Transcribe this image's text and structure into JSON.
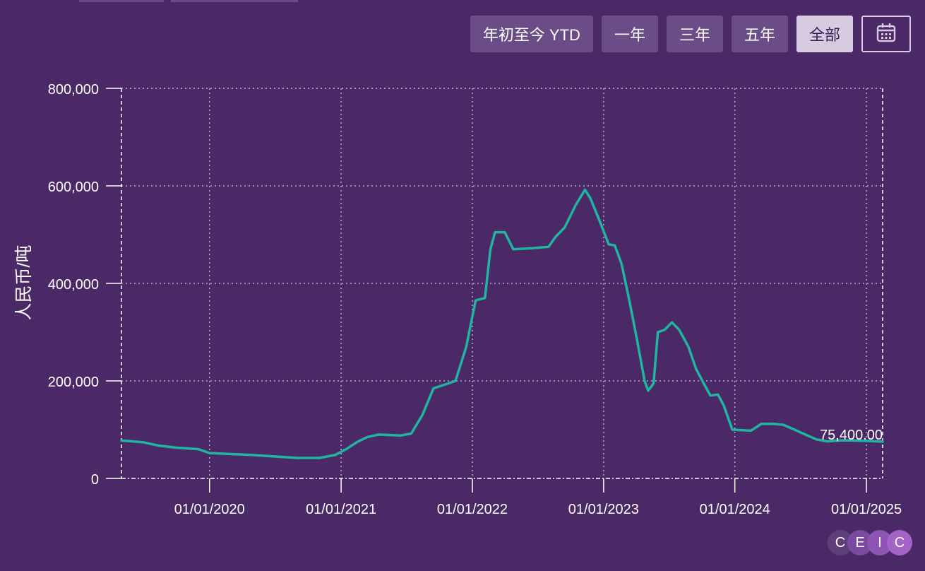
{
  "toolbar": {
    "buttons": [
      {
        "label": "年初至今 YTD",
        "active": false
      },
      {
        "label": "一年",
        "active": false
      },
      {
        "label": "三年",
        "active": false
      },
      {
        "label": "五年",
        "active": false
      },
      {
        "label": "全部",
        "active": true
      }
    ],
    "calendar_icon": "calendar-icon"
  },
  "logo": {
    "text": "CEIC",
    "letters": [
      "C",
      "E",
      "I",
      "C"
    ]
  },
  "colors": {
    "background": "#4a2966",
    "line": "#1fb5a0",
    "grid": "#bba9cc",
    "button": "#6a4c87",
    "button_active": "#d6cbe0"
  },
  "chart_data": {
    "type": "line",
    "ylabel": "人民币/吨",
    "xlabel": "",
    "title": "",
    "ylim": [
      0,
      800000
    ],
    "y_ticks": [
      0,
      200000,
      400000,
      600000,
      800000
    ],
    "y_tick_labels": [
      "0",
      "200,000",
      "400,000",
      "600,000",
      "800,000"
    ],
    "x_ticks": [
      "2020-01-01",
      "2021-01-01",
      "2022-01-01",
      "2023-01-01",
      "2024-01-01",
      "2025-01-01"
    ],
    "x_tick_labels": [
      "01/01/2020",
      "01/01/2021",
      "01/01/2022",
      "01/01/2023",
      "01/01/2024",
      "01/01/2025"
    ],
    "xlim": [
      "2019-05-01",
      "2025-02-15"
    ],
    "last_value_label": "75,400.00",
    "grid": true,
    "series": [
      {
        "color": "#1fb5a0",
        "points": [
          [
            "2019-05-01",
            78000
          ],
          [
            "2019-07-01",
            74000
          ],
          [
            "2019-08-15",
            67000
          ],
          [
            "2019-10-01",
            63000
          ],
          [
            "2019-12-01",
            60000
          ],
          [
            "2020-01-01",
            52000
          ],
          [
            "2020-03-01",
            50000
          ],
          [
            "2020-05-01",
            48000
          ],
          [
            "2020-07-01",
            45000
          ],
          [
            "2020-09-01",
            42000
          ],
          [
            "2020-11-01",
            42000
          ],
          [
            "2020-12-15",
            48000
          ],
          [
            "2021-01-15",
            60000
          ],
          [
            "2021-02-15",
            75000
          ],
          [
            "2021-03-15",
            85000
          ],
          [
            "2021-04-15",
            90000
          ],
          [
            "2021-06-15",
            88000
          ],
          [
            "2021-07-15",
            92000
          ],
          [
            "2021-08-15",
            130000
          ],
          [
            "2021-09-15",
            185000
          ],
          [
            "2021-10-15",
            192000
          ],
          [
            "2021-11-15",
            200000
          ],
          [
            "2021-12-15",
            270000
          ],
          [
            "2022-01-10",
            365000
          ],
          [
            "2022-02-05",
            370000
          ],
          [
            "2022-02-20",
            470000
          ],
          [
            "2022-03-05",
            505000
          ],
          [
            "2022-04-01",
            505000
          ],
          [
            "2022-04-25",
            470000
          ],
          [
            "2022-06-15",
            472000
          ],
          [
            "2022-08-01",
            475000
          ],
          [
            "2022-08-20",
            495000
          ],
          [
            "2022-09-15",
            515000
          ],
          [
            "2022-10-15",
            560000
          ],
          [
            "2022-11-10",
            592000
          ],
          [
            "2022-11-25",
            575000
          ],
          [
            "2022-12-20",
            530000
          ],
          [
            "2023-01-15",
            480000
          ],
          [
            "2023-02-01",
            478000
          ],
          [
            "2023-02-20",
            440000
          ],
          [
            "2023-03-15",
            360000
          ],
          [
            "2023-04-05",
            280000
          ],
          [
            "2023-04-25",
            200000
          ],
          [
            "2023-05-05",
            180000
          ],
          [
            "2023-05-20",
            195000
          ],
          [
            "2023-06-01",
            300000
          ],
          [
            "2023-06-20",
            305000
          ],
          [
            "2023-07-10",
            320000
          ],
          [
            "2023-07-30",
            305000
          ],
          [
            "2023-08-25",
            270000
          ],
          [
            "2023-09-15",
            225000
          ],
          [
            "2023-10-10",
            190000
          ],
          [
            "2023-10-25",
            170000
          ],
          [
            "2023-11-15",
            172000
          ],
          [
            "2023-12-01",
            150000
          ],
          [
            "2023-12-25",
            100000
          ],
          [
            "2024-02-15",
            98000
          ],
          [
            "2024-03-15",
            112000
          ],
          [
            "2024-04-15",
            112000
          ],
          [
            "2024-05-15",
            110000
          ],
          [
            "2024-06-15",
            100000
          ],
          [
            "2024-07-15",
            90000
          ],
          [
            "2024-08-15",
            80000
          ],
          [
            "2024-09-15",
            76000
          ],
          [
            "2024-10-15",
            78000
          ],
          [
            "2024-11-15",
            78000
          ],
          [
            "2025-01-01",
            77000
          ],
          [
            "2025-02-15",
            75400
          ]
        ]
      }
    ]
  }
}
